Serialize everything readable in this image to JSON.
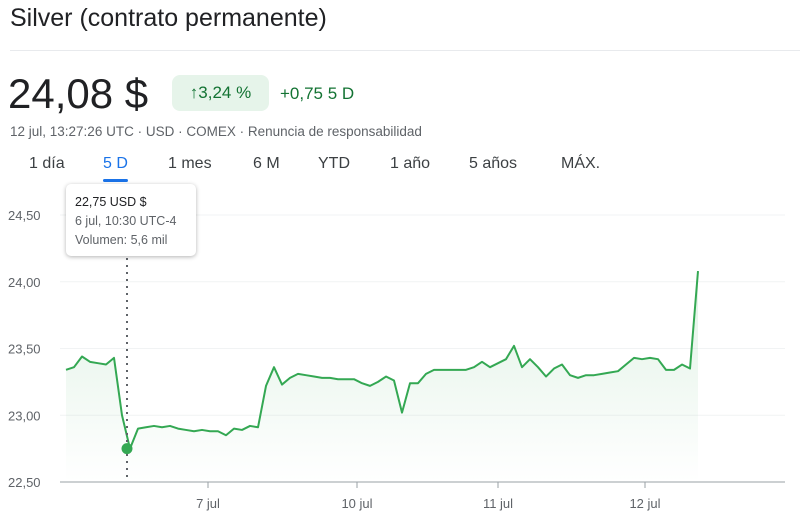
{
  "header": {
    "title": "Silver (contrato permanente)",
    "price": "24,08 $",
    "change_pct": "3,24 %",
    "change_icon": "arrow-up-icon",
    "change_abs": "+0,75 5 D",
    "meta": "12 jul, 13:27:26 UTC · USD · COMEX · Renuncia de responsabilidad"
  },
  "tabs": [
    {
      "label": "1 día"
    },
    {
      "label": "5 D",
      "active": true
    },
    {
      "label": "1 mes"
    },
    {
      "label": "6 M"
    },
    {
      "label": "YTD"
    },
    {
      "label": "1 año"
    },
    {
      "label": "5 años"
    },
    {
      "label": "MÁX."
    }
  ],
  "tooltip": {
    "value": "22,75 USD $",
    "time": "6 jul, 10:30 UTC-4",
    "volume": "Volumen: 5,6 mil"
  },
  "colors": {
    "line": "#34a853",
    "up": "#137333",
    "accent": "#1a73e8"
  },
  "chart_data": {
    "type": "area",
    "ylim": [
      22.5,
      24.5
    ],
    "y_ticks": [
      "24,50",
      "24,00",
      "23,50",
      "23,00",
      "22,50"
    ],
    "x_ticks": [
      "7 jul",
      "10 jul",
      "11 jul",
      "12 jul"
    ],
    "grid": true,
    "hover_value": 22.75,
    "values": [
      23.34,
      23.36,
      23.44,
      23.4,
      23.39,
      23.38,
      23.43,
      23.0,
      22.75,
      22.9,
      22.91,
      22.92,
      22.91,
      22.92,
      22.9,
      22.89,
      22.88,
      22.89,
      22.88,
      22.88,
      22.85,
      22.9,
      22.89,
      22.92,
      22.91,
      23.22,
      23.36,
      23.23,
      23.28,
      23.31,
      23.3,
      23.29,
      23.28,
      23.28,
      23.27,
      23.27,
      23.27,
      23.24,
      23.22,
      23.25,
      23.29,
      23.26,
      23.02,
      23.24,
      23.24,
      23.31,
      23.34,
      23.34,
      23.34,
      23.34,
      23.34,
      23.36,
      23.4,
      23.36,
      23.39,
      23.42,
      23.52,
      23.36,
      23.42,
      23.36,
      23.29,
      23.35,
      23.38,
      23.3,
      23.28,
      23.3,
      23.3,
      23.31,
      23.32,
      23.33,
      23.38,
      23.43,
      23.42,
      23.43,
      23.42,
      23.34,
      23.34,
      23.38,
      23.35,
      24.08
    ]
  }
}
